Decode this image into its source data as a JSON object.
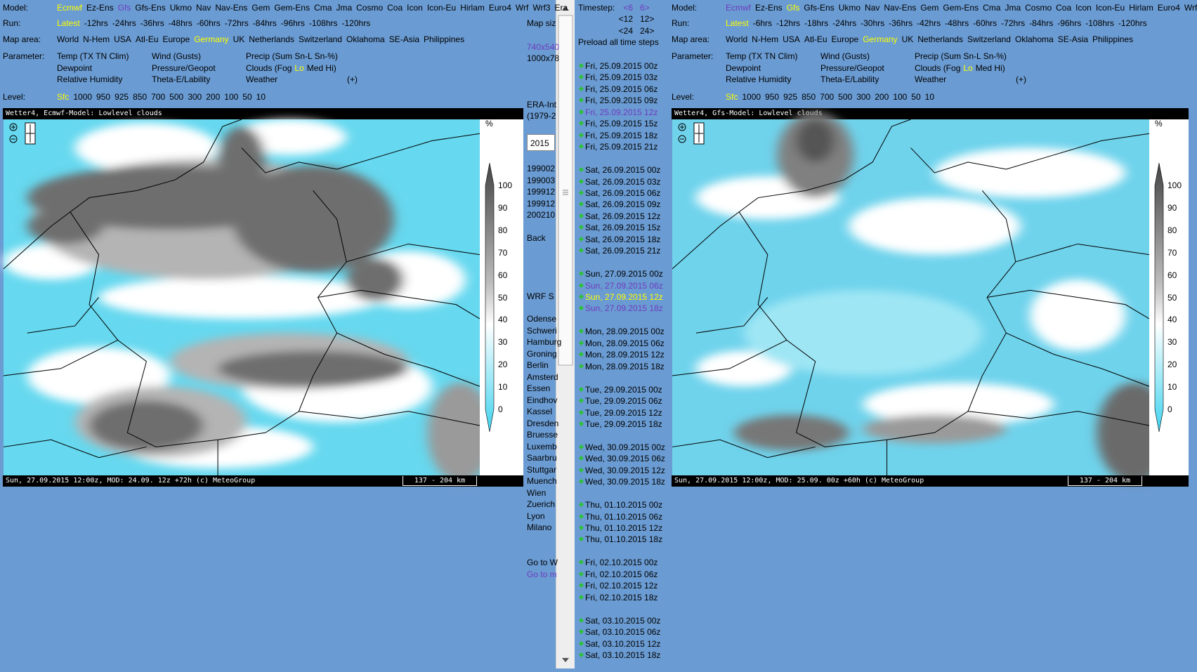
{
  "left_panel": {
    "labels": {
      "model": "Model:",
      "run": "Run:",
      "map_area": "Map area:",
      "parameter": "Parameter:",
      "level": "Level:"
    },
    "models": [
      {
        "text": "Ecmwf",
        "color": "#ffff00"
      },
      "Ez-Ens",
      {
        "text": "Gfs",
        "color": "#6f3cc0"
      },
      "Gfs-Ens",
      "Ukmo",
      "Nav",
      "Nav-Ens",
      "Gem",
      "Gem-Ens",
      "Cma",
      "Jma",
      "Cosmo",
      "Coa",
      "Icon",
      "Icon-Eu",
      "Hirlam",
      "Euro4",
      "Wrf",
      "Wrf3",
      "Era"
    ],
    "runs": [
      {
        "text": "Latest",
        "color": "#ffff00"
      },
      "-12hrs",
      "-24hrs",
      "-36hrs",
      "-48hrs",
      "-60hrs",
      "-72hrs",
      "-84hrs",
      "-96hrs",
      "-108hrs",
      "-120hrs"
    ],
    "map_areas": [
      "World",
      "N-Hem",
      "USA",
      "Atl-Eu",
      "Europe",
      {
        "text": "Germany",
        "color": "#ffff00"
      },
      "UK",
      "Netherlands",
      "Switzerland",
      "Oklahoma",
      "SE-Asia",
      "Philippines"
    ],
    "parameters": [
      [
        [
          "Temp (TX TN Clim)"
        ],
        [
          "Wind (Gusts)"
        ],
        [
          "Precip (Sum Sn-L Sn-%)"
        ]
      ],
      [
        [
          "Dewpoint"
        ],
        [
          "Pressure/Geopot"
        ],
        [
          "Clouds (Fog",
          {
            "text": "Lo",
            "color": "#ffff00"
          },
          "Med Hi)"
        ]
      ],
      [
        [
          "Relative Humidity"
        ],
        [
          "Theta-E/Lability"
        ],
        [
          "Weather"
        ],
        [
          "(+)"
        ]
      ]
    ],
    "levels": [
      {
        "text": "Sfc",
        "color": "#ffff00"
      },
      "1000",
      "950",
      "925",
      "850",
      "700",
      "500",
      "300",
      "200",
      "100",
      "50",
      "10"
    ],
    "map": {
      "header": "Wetter4, Ecmwf-Model: Lowlevel clouds",
      "footer": "Sun, 27.09.2015 12:00z, MOD: 24.09. 12z +72h (c) MeteoGroup",
      "scale": "137 - 204 km",
      "unit": "%",
      "legend_ticks": [
        100,
        90,
        80,
        70,
        60,
        50,
        40,
        30,
        20,
        10,
        0
      ]
    }
  },
  "right_panel": {
    "labels": {
      "model": "Model:",
      "run": "Run:",
      "map_area": "Map area:",
      "parameter": "Parameter:",
      "level": "Level:"
    },
    "models": [
      {
        "text": "Ecmwf",
        "color": "#6f3cc0"
      },
      "Ez-Ens",
      {
        "text": "Gfs",
        "color": "#ffff00"
      },
      "Gfs-Ens",
      "Ukmo",
      "Nav",
      "Nav-Ens",
      "Gem",
      "Gem-Ens",
      "Cma",
      "Jma",
      "Cosmo",
      "Coa",
      "Icon",
      "Icon-Eu",
      "Hirlam",
      "Euro4",
      "Wrf"
    ],
    "runs": [
      {
        "text": "Latest",
        "color": "#ffff00"
      },
      "-6hrs",
      "-12hrs",
      "-18hrs",
      "-24hrs",
      "-30hrs",
      "-36hrs",
      "-42hrs",
      "-48hrs",
      "-60hrs",
      "-72hrs",
      "-84hrs",
      "-96hrs",
      "-108hrs",
      "-120hrs"
    ],
    "map_areas": [
      "World",
      "N-Hem",
      "USA",
      "Atl-Eu",
      "Europe",
      {
        "text": "Germany",
        "color": "#ffff00"
      },
      "UK",
      "Netherlands",
      "Switzerland",
      "Oklahoma",
      "SE-Asia",
      "Philippines"
    ],
    "parameters": [
      [
        [
          "Temp (TX TN Clim)"
        ],
        [
          "Wind (Gusts)"
        ],
        [
          "Precip (Sum Sn-L Sn-%)"
        ]
      ],
      [
        [
          "Dewpoint"
        ],
        [
          "Pressure/Geopot"
        ],
        [
          "Clouds (Fog",
          {
            "text": "Lo",
            "color": "#ffff00"
          },
          "Med Hi)"
        ]
      ],
      [
        [
          "Relative Humidity"
        ],
        [
          "Theta-E/Lability"
        ],
        [
          "Weather"
        ],
        [
          "(+)"
        ]
      ]
    ],
    "levels": [
      {
        "text": "Sfc",
        "color": "#ffff00"
      },
      "1000",
      "950",
      "925",
      "850",
      "700",
      "500",
      "300",
      "200",
      "100",
      "50",
      "10"
    ],
    "map": {
      "header": "Wetter4, Gfs-Model: Lowlevel clouds",
      "footer": "Sun, 27.09.2015 12:00z, MOD: 25.09. 00z +60h (c) MeteoGroup",
      "scale": "137 - 204 km",
      "unit": "%",
      "legend_ticks": [
        100,
        90,
        80,
        70,
        60,
        50,
        40,
        30,
        20,
        10,
        0
      ]
    }
  },
  "middle_column": {
    "map_size_label": "Map siz",
    "map_sizes": [
      {
        "text": "740x540",
        "color": "#6f3cc0"
      },
      "1000x78"
    ],
    "era_label": "ERA-Int",
    "era_range": "(1979-2",
    "year_input": "2015",
    "dates": [
      "199002",
      "199003",
      "199912",
      "199912",
      "200210"
    ],
    "back": "Back",
    "wrf_label": "WRF S",
    "cities": [
      "Odense",
      "Schweri",
      "Hamburg",
      "Groning",
      "Berlin",
      "Amsterd",
      "Essen",
      "Eindhov",
      "Kassel",
      "Dresden",
      "Bruesse",
      "Luxemb",
      "Saarbru",
      "Stuttgar",
      "Muench",
      "Wien",
      "Zuerich",
      "Lyon",
      "Milano"
    ],
    "goto_w": "Go to W",
    "goto_m": {
      "text": "Go to m",
      "color": "#6f3cc0"
    }
  },
  "timestep_column": {
    "label": "Timestep:",
    "nav": [
      [
        {
          "text": "<6",
          "color": "#6f3cc0"
        },
        {
          "text": "6>",
          "color": "#6f3cc0"
        }
      ],
      [
        "<12",
        "12>"
      ],
      [
        "<24",
        "24>"
      ]
    ],
    "preload": "Preload all time steps",
    "groups": [
      [
        "Fri, 25.09.2015 00z",
        "Fri, 25.09.2015 03z",
        "Fri, 25.09.2015 06z",
        "Fri, 25.09.2015 09z",
        {
          "text": "Fri, 25.09.2015 12z",
          "color": "#6f3cc0"
        },
        "Fri, 25.09.2015 15z",
        "Fri, 25.09.2015 18z",
        "Fri, 25.09.2015 21z"
      ],
      [
        "Sat, 26.09.2015 00z",
        "Sat, 26.09.2015 03z",
        "Sat, 26.09.2015 06z",
        "Sat, 26.09.2015 09z",
        "Sat, 26.09.2015 12z",
        "Sat, 26.09.2015 15z",
        "Sat, 26.09.2015 18z",
        "Sat, 26.09.2015 21z"
      ],
      [
        "Sun, 27.09.2015 00z",
        {
          "text": "Sun, 27.09.2015 06z",
          "color": "#6f3cc0"
        },
        {
          "text": "Sun, 27.09.2015 12z",
          "color": "#ffff00"
        },
        {
          "text": "Sun, 27.09.2015 18z",
          "color": "#6f3cc0"
        }
      ],
      [
        "Mon, 28.09.2015 00z",
        "Mon, 28.09.2015 06z",
        "Mon, 28.09.2015 12z",
        "Mon, 28.09.2015 18z"
      ],
      [
        "Tue, 29.09.2015 00z",
        "Tue, 29.09.2015 06z",
        "Tue, 29.09.2015 12z",
        "Tue, 29.09.2015 18z"
      ],
      [
        "Wed, 30.09.2015 00z",
        "Wed, 30.09.2015 06z",
        "Wed, 30.09.2015 12z",
        "Wed, 30.09.2015 18z"
      ],
      [
        "Thu, 01.10.2015 00z",
        "Thu, 01.10.2015 06z",
        "Thu, 01.10.2015 12z",
        "Thu, 01.10.2015 18z"
      ],
      [
        "Fri, 02.10.2015 00z",
        "Fri, 02.10.2015 06z",
        "Fri, 02.10.2015 12z",
        "Fri, 02.10.2015 18z"
      ],
      [
        "Sat, 03.10.2015 00z",
        "Sat, 03.10.2015 06z",
        "Sat, 03.10.2015 12z",
        "Sat, 03.10.2015 18z"
      ]
    ]
  }
}
